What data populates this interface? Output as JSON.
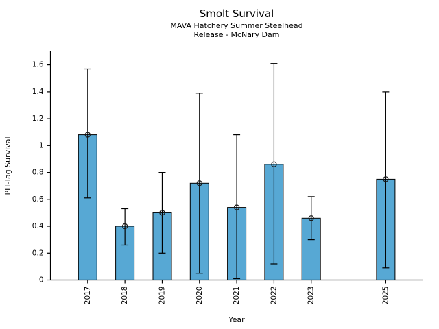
{
  "header": {
    "title": "Smolt Survival",
    "subtitle_line1": "MAVA Hatchery Summer Steelhead",
    "subtitle_line2": "Release - McNary Dam"
  },
  "chart_data": {
    "type": "bar",
    "title": "Smolt Survival",
    "subtitle": [
      "MAVA Hatchery Summer Steelhead",
      "Release - McNary Dam"
    ],
    "xlabel": "Year",
    "ylabel": "PIT-Tag Survival",
    "categories": [
      "2017",
      "2018",
      "2019",
      "2020",
      "2021",
      "2022",
      "2023",
      "2025"
    ],
    "x_numeric": [
      2017,
      2018,
      2019,
      2020,
      2021,
      2022,
      2023,
      2025
    ],
    "values": [
      1.08,
      0.4,
      0.5,
      0.72,
      0.54,
      0.86,
      0.46,
      0.75
    ],
    "ci_low": [
      0.61,
      0.26,
      0.2,
      0.05,
      0.01,
      0.12,
      0.3,
      0.09
    ],
    "ci_high": [
      1.57,
      0.53,
      0.8,
      1.39,
      1.08,
      1.61,
      0.62,
      1.4
    ],
    "missing_years": [
      "2024"
    ],
    "xlim": [
      2016,
      2026
    ],
    "ylim": [
      0,
      1.7
    ],
    "yticks": [
      0,
      0.2,
      0.4,
      0.6,
      0.8,
      1,
      1.2,
      1.4,
      1.6
    ],
    "ytick_labels": [
      "0",
      "0.2",
      "0.4",
      "0.6",
      "0.8",
      "1",
      "1.2",
      "1.4",
      "1.6"
    ],
    "grid": false,
    "legend": null,
    "marker": "open-circle",
    "colors": {
      "bar_fill": "#57A8D4",
      "bar_edge": "#000000",
      "error_bar": "#000000",
      "marker_edge": "#1a1a1a",
      "axis": "#000000",
      "text": "#000000",
      "background": "#ffffff"
    }
  }
}
